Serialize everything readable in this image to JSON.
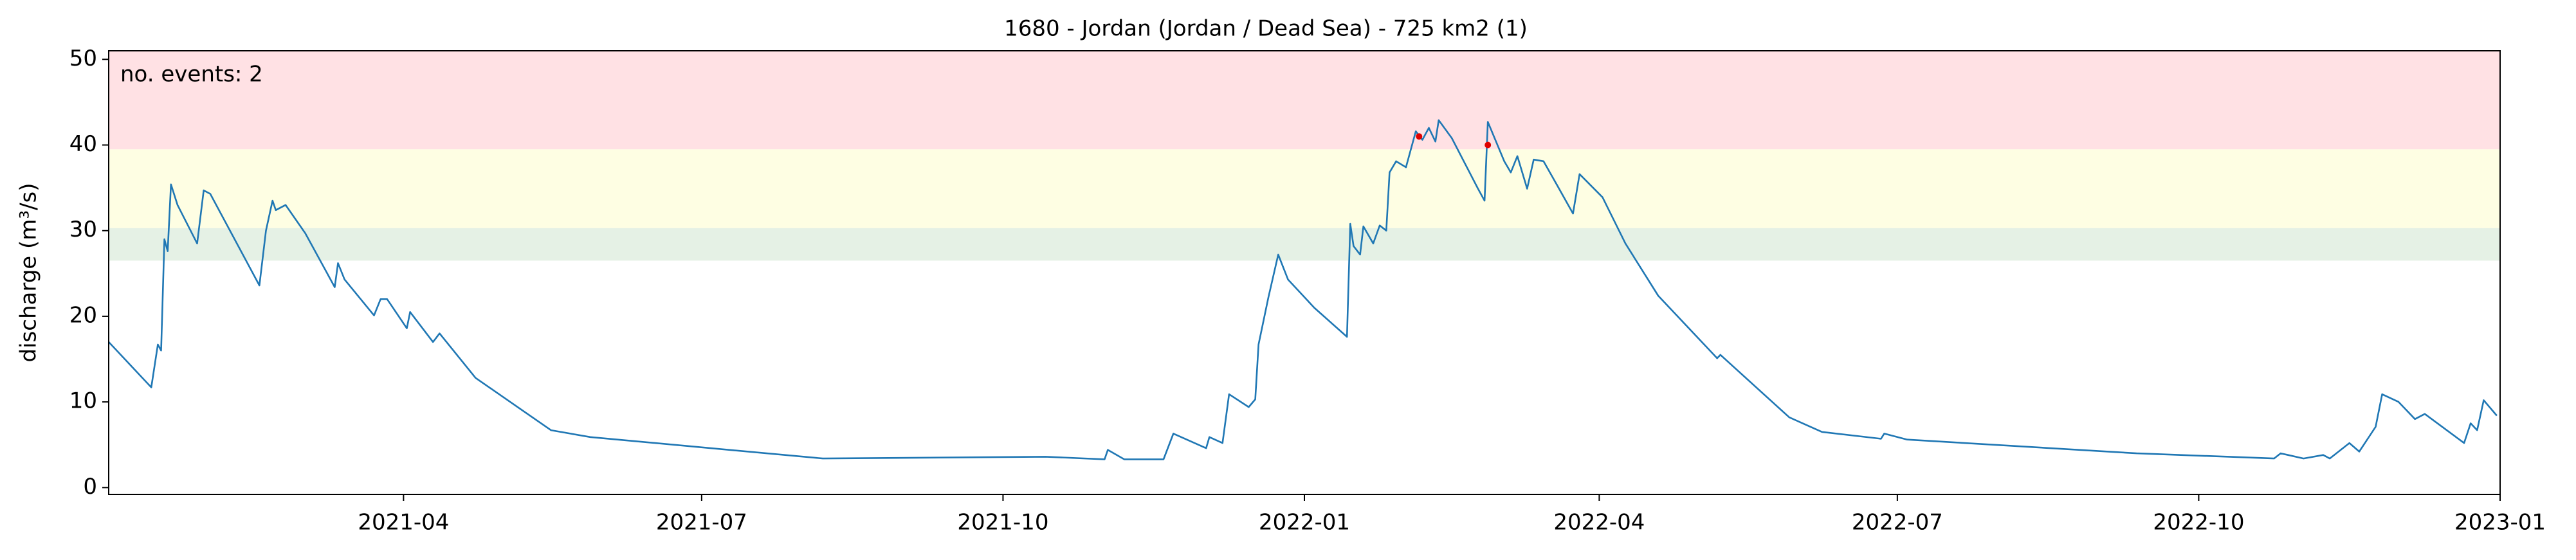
{
  "chart_data": {
    "type": "line",
    "title": "1680 - Jordan (Jordan / Dead Sea) - 725 km2 (1)",
    "y_label": "discharge (m³/s)",
    "annotation": "no. events: 2",
    "annotation_color": "#e00000",
    "color": "#1f77b4",
    "xlim": [
      "2021-01-01",
      "2023-01-01"
    ],
    "xticks": [
      "2021-04",
      "2021-07",
      "2021-10",
      "2022-01",
      "2022-04",
      "2022-07",
      "2022-10",
      "2023-01"
    ],
    "ylim": [
      -0.8,
      51
    ],
    "yticks": [
      0,
      10,
      20,
      30,
      40,
      50
    ],
    "bands": [
      {
        "range": [
          26.5,
          30.3
        ],
        "color": "#e5f1e5"
      },
      {
        "range": [
          30.3,
          39.5
        ],
        "color": "#fefee3"
      },
      {
        "range": [
          39.5,
          51
        ],
        "color": "#ffe1e4"
      }
    ],
    "x": [
      "2021-01-01",
      "2021-01-14",
      "2021-01-16",
      "2021-01-17",
      "2021-01-18",
      "2021-01-19",
      "2021-01-20",
      "2021-01-22",
      "2021-01-28",
      "2021-01-30",
      "2021-02-01",
      "2021-02-16",
      "2021-02-18",
      "2021-02-20",
      "2021-02-21",
      "2021-02-24",
      "2021-03-02",
      "2021-03-11",
      "2021-03-12",
      "2021-03-14",
      "2021-03-23",
      "2021-03-25",
      "2021-03-27",
      "2021-04-02",
      "2021-04-03",
      "2021-04-10",
      "2021-04-12",
      "2021-04-23",
      "2021-05-16",
      "2021-05-28",
      "2021-08-07",
      "2021-10-14",
      "2021-11-01",
      "2021-11-02",
      "2021-11-07",
      "2021-11-19",
      "2021-11-22",
      "2021-12-02",
      "2021-12-03",
      "2021-12-07",
      "2021-12-09",
      "2021-12-15",
      "2021-12-17",
      "2021-12-18",
      "2021-12-21",
      "2021-12-24",
      "2021-12-27",
      "2022-01-04",
      "2022-01-14",
      "2022-01-15",
      "2022-01-16",
      "2022-01-18",
      "2022-01-19",
      "2022-01-22",
      "2022-01-24",
      "2022-01-26",
      "2022-01-27",
      "2022-01-29",
      "2022-02-01",
      "2022-02-04",
      "2022-02-06",
      "2022-02-08",
      "2022-02-10",
      "2022-02-11",
      "2022-02-15",
      "2022-02-23",
      "2022-02-25",
      "2022-02-26",
      "2022-03-03",
      "2022-03-05",
      "2022-03-07",
      "2022-03-10",
      "2022-03-12",
      "2022-03-15",
      "2022-03-19",
      "2022-03-24",
      "2022-03-26",
      "2022-04-02",
      "2022-04-09",
      "2022-04-19",
      "2022-05-07",
      "2022-05-08",
      "2022-05-29",
      "2022-06-08",
      "2022-06-26",
      "2022-06-27",
      "2022-07-04",
      "2022-09-12",
      "2022-10-24",
      "2022-10-26",
      "2022-11-02",
      "2022-11-08",
      "2022-11-10",
      "2022-11-16",
      "2022-11-19",
      "2022-11-24",
      "2022-11-26",
      "2022-12-01",
      "2022-12-06",
      "2022-12-09",
      "2022-12-21",
      "2022-12-23",
      "2022-12-25",
      "2022-12-27",
      "2022-12-31"
    ],
    "values": [
      17.0,
      11.7,
      16.7,
      16.0,
      29.0,
      27.6,
      35.4,
      33.0,
      28.5,
      34.7,
      34.3,
      23.6,
      30.0,
      33.5,
      32.4,
      33.0,
      29.7,
      23.4,
      26.2,
      24.3,
      20.1,
      22.0,
      22.0,
      18.6,
      20.5,
      17.0,
      18.0,
      12.8,
      6.7,
      5.9,
      3.4,
      3.6,
      3.3,
      4.4,
      3.3,
      3.3,
      6.3,
      4.6,
      5.9,
      5.2,
      10.9,
      9.4,
      10.3,
      16.7,
      22.2,
      27.2,
      24.3,
      21.0,
      17.6,
      30.8,
      28.2,
      27.2,
      30.5,
      28.5,
      30.6,
      30.0,
      36.8,
      38.1,
      37.4,
      41.6,
      40.6,
      42.0,
      40.4,
      42.9,
      40.8,
      34.9,
      33.5,
      42.7,
      38.1,
      36.8,
      38.7,
      34.9,
      38.3,
      38.1,
      35.4,
      32.0,
      36.6,
      33.9,
      28.5,
      22.4,
      15.1,
      15.5,
      8.2,
      6.5,
      5.7,
      6.3,
      5.6,
      4.0,
      3.4,
      4.0,
      3.4,
      3.8,
      3.4,
      5.2,
      4.2,
      7.1,
      10.9,
      10.0,
      8.0,
      8.6,
      5.2,
      7.5,
      6.7,
      10.2,
      8.4
    ],
    "events": {
      "x": [
        "2022-02-05",
        "2022-02-26"
      ],
      "values": [
        41.0,
        40.0
      ],
      "color": "#e00000"
    }
  }
}
